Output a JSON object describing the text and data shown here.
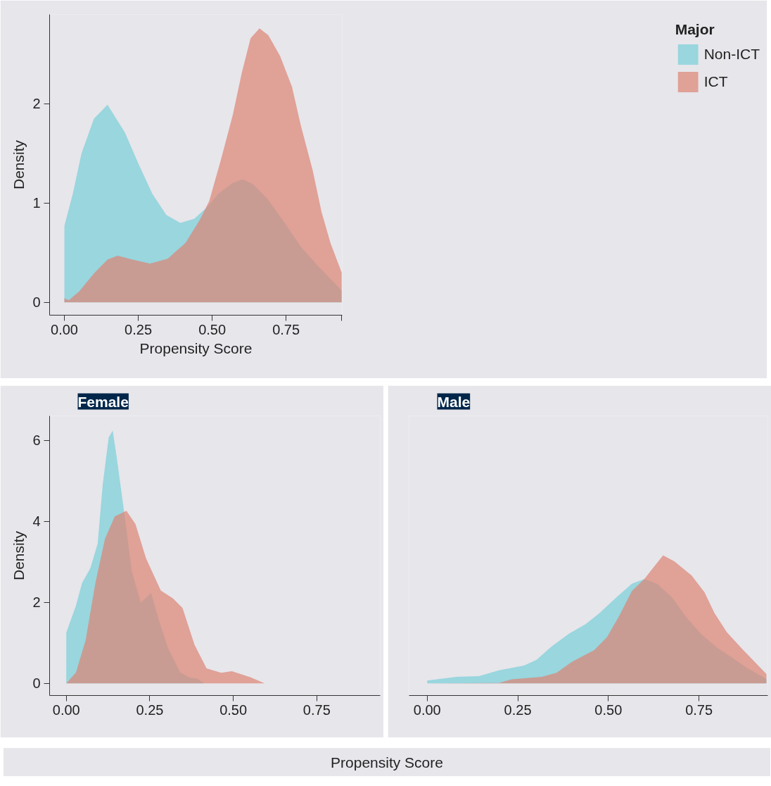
{
  "chart_data": [
    {
      "type": "area",
      "xlabel": "Propensity Score",
      "ylabel": "Density",
      "legend_title": "Major",
      "legend": "right",
      "grid": false,
      "xlim": [
        -0.05,
        0.94
      ],
      "ylim": [
        -0.13,
        2.9
      ],
      "xticks": [
        {
          "value": 0,
          "label": "0.00"
        },
        {
          "value": 0.25,
          "label": "0.25"
        },
        {
          "value": 0.5,
          "label": "0.50"
        },
        {
          "value": 0.75,
          "label": "0.75"
        },
        {
          "value": 0.938,
          "label": null
        }
      ],
      "yticks": [
        0,
        1,
        2
      ],
      "series": [
        {
          "name": "Non-ICT",
          "color": "#99d5de",
          "x": [
            0,
            0.029,
            0.058,
            0.1,
            0.146,
            0.205,
            0.25,
            0.298,
            0.345,
            0.392,
            0.439,
            0.48,
            0.52,
            0.568,
            0.603,
            0.638,
            0.685,
            0.743,
            0.8,
            0.86,
            0.938
          ],
          "values": [
            0.77,
            1.1,
            1.5,
            1.85,
            1.99,
            1.71,
            1.4,
            1.09,
            0.88,
            0.8,
            0.84,
            0.95,
            1.09,
            1.2,
            1.24,
            1.19,
            1.05,
            0.81,
            0.56,
            0.36,
            0.12
          ]
        },
        {
          "name": "ICT",
          "color": "#e0a197",
          "x": [
            0,
            0.015,
            0.05,
            0.1,
            0.146,
            0.18,
            0.23,
            0.29,
            0.35,
            0.41,
            0.46,
            0.49,
            0.53,
            0.57,
            0.6,
            0.63,
            0.66,
            0.69,
            0.73,
            0.77,
            0.8,
            0.84,
            0.87,
            0.9,
            0.938
          ],
          "values": [
            0.04,
            0.02,
            0.11,
            0.29,
            0.43,
            0.47,
            0.43,
            0.39,
            0.44,
            0.6,
            0.84,
            1.02,
            1.44,
            1.89,
            2.31,
            2.66,
            2.76,
            2.69,
            2.48,
            2.17,
            1.78,
            1.33,
            0.91,
            0.6,
            0.3
          ]
        }
      ]
    },
    {
      "type": "area",
      "title": "Female",
      "xlabel": "Propensity Score",
      "ylabel": "Density",
      "grid": false,
      "xlim": [
        -0.05,
        0.94
      ],
      "ylim": [
        -0.3,
        6.6
      ],
      "xticks": [
        {
          "value": 0,
          "label": "0.00"
        },
        {
          "value": 0.25,
          "label": "0.25"
        },
        {
          "value": 0.5,
          "label": "0.50"
        },
        {
          "value": 0.75,
          "label": "0.75"
        }
      ],
      "yticks": [
        0,
        2,
        4,
        6
      ],
      "series": [
        {
          "color": "#99d5de",
          "x": [
            0,
            0.029,
            0.047,
            0.072,
            0.094,
            0.109,
            0.127,
            0.139,
            0.152,
            0.174,
            0.196,
            0.223,
            0.254,
            0.275,
            0.304,
            0.341,
            0.37,
            0.391,
            0.413
          ],
          "values": [
            1.25,
            1.92,
            2.47,
            2.84,
            3.45,
            4.9,
            6.07,
            6.24,
            5.52,
            4.18,
            2.77,
            1.99,
            2.23,
            1.62,
            0.88,
            0.27,
            0.14,
            0.12,
            0
          ]
        },
        {
          "color": "#e0a197",
          "x": [
            0,
            0.029,
            0.058,
            0.087,
            0.116,
            0.145,
            0.18,
            0.207,
            0.239,
            0.283,
            0.319,
            0.348,
            0.384,
            0.42,
            0.464,
            0.496,
            0.551,
            0.594
          ],
          "values": [
            0,
            0.27,
            1.07,
            2.47,
            3.57,
            4.12,
            4.26,
            3.93,
            3.08,
            2.29,
            2.1,
            1.86,
            0.95,
            0.37,
            0.26,
            0.3,
            0.15,
            0
          ]
        }
      ]
    },
    {
      "type": "area",
      "title": "Male",
      "grid": false,
      "tick_labels": "x",
      "xlim": [
        -0.05,
        0.94
      ],
      "ylim": [
        -0.3,
        6.6
      ],
      "xticks": [
        {
          "value": 0,
          "label": "0.00"
        },
        {
          "value": 0.25,
          "label": "0.25"
        },
        {
          "value": 0.5,
          "label": "0.50"
        },
        {
          "value": 0.75,
          "label": "0.75"
        }
      ],
      "yticks": [
        0,
        2,
        4,
        6
      ],
      "series": [
        {
          "color": "#99d5de",
          "x": [
            0,
            0.081,
            0.143,
            0.198,
            0.267,
            0.302,
            0.343,
            0.392,
            0.437,
            0.475,
            0.523,
            0.565,
            0.599,
            0.634,
            0.675,
            0.717,
            0.758,
            0.8,
            0.841,
            0.883,
            0.936
          ],
          "values": [
            0.07,
            0.16,
            0.18,
            0.32,
            0.44,
            0.58,
            0.91,
            1.23,
            1.46,
            1.73,
            2.13,
            2.46,
            2.57,
            2.46,
            2.13,
            1.61,
            1.2,
            0.88,
            0.64,
            0.38,
            0.11
          ]
        },
        {
          "color": "#e0a197",
          "x": [
            0,
            0.198,
            0.233,
            0.316,
            0.357,
            0.399,
            0.461,
            0.496,
            0.53,
            0.565,
            0.599,
            0.627,
            0.651,
            0.682,
            0.73,
            0.765,
            0.793,
            0.827,
            0.869,
            0.936
          ],
          "values": [
            0,
            0.01,
            0.1,
            0.16,
            0.26,
            0.53,
            0.82,
            1.14,
            1.67,
            2.28,
            2.57,
            2.89,
            3.16,
            3.01,
            2.66,
            2.25,
            1.73,
            1.26,
            0.85,
            0.23
          ]
        }
      ]
    }
  ]
}
